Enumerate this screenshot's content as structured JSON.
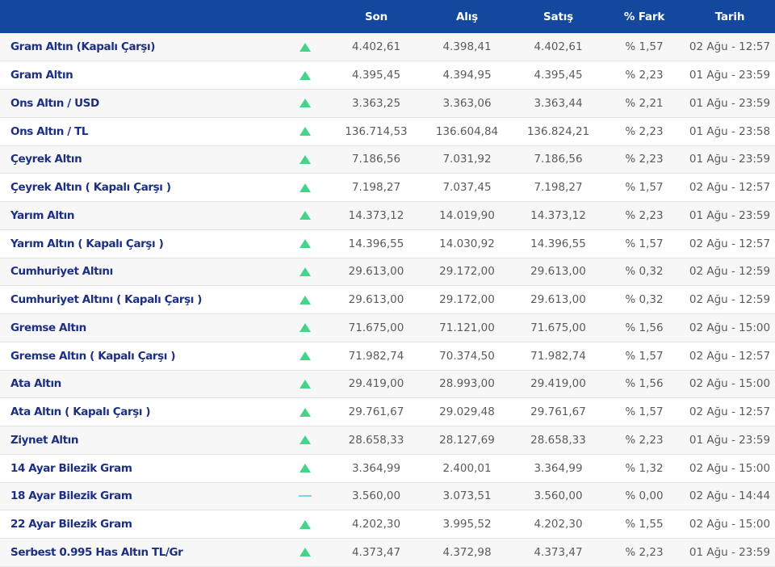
{
  "columns": [
    "",
    "",
    "Son",
    "Alış",
    "Satış",
    "% Fark",
    "Tarih"
  ],
  "colors": {
    "header_bg": "#13489e",
    "name_text": "#1c2f80",
    "up": "#49d38a",
    "flat": "#7fd3e0"
  },
  "rows": [
    {
      "name": "Gram Altın (Kapalı Çarşı)",
      "trend": "up",
      "son": "4.402,61",
      "alis": "4.398,41",
      "satis": "4.402,61",
      "fark": "% 1,57",
      "tarih": "02 Ağu - 12:57"
    },
    {
      "name": "Gram Altın",
      "trend": "up",
      "son": "4.395,45",
      "alis": "4.394,95",
      "satis": "4.395,45",
      "fark": "% 2,23",
      "tarih": "01 Ağu - 23:59"
    },
    {
      "name": "Ons Altın / USD",
      "trend": "up",
      "son": "3.363,25",
      "alis": "3.363,06",
      "satis": "3.363,44",
      "fark": "% 2,21",
      "tarih": "01 Ağu - 23:59"
    },
    {
      "name": "Ons Altın / TL",
      "trend": "up",
      "son": "136.714,53",
      "alis": "136.604,84",
      "satis": "136.824,21",
      "fark": "% 2,23",
      "tarih": "01 Ağu - 23:58"
    },
    {
      "name": "Çeyrek Altın",
      "trend": "up",
      "son": "7.186,56",
      "alis": "7.031,92",
      "satis": "7.186,56",
      "fark": "% 2,23",
      "tarih": "01 Ağu - 23:59"
    },
    {
      "name": "Çeyrek Altın ( Kapalı Çarşı )",
      "trend": "up",
      "son": "7.198,27",
      "alis": "7.037,45",
      "satis": "7.198,27",
      "fark": "% 1,57",
      "tarih": "02 Ağu - 12:57"
    },
    {
      "name": "Yarım Altın",
      "trend": "up",
      "son": "14.373,12",
      "alis": "14.019,90",
      "satis": "14.373,12",
      "fark": "% 2,23",
      "tarih": "01 Ağu - 23:59"
    },
    {
      "name": "Yarım Altın ( Kapalı Çarşı )",
      "trend": "up",
      "son": "14.396,55",
      "alis": "14.030,92",
      "satis": "14.396,55",
      "fark": "% 1,57",
      "tarih": "02 Ağu - 12:57"
    },
    {
      "name": "Cumhuriyet Altını",
      "trend": "up",
      "son": "29.613,00",
      "alis": "29.172,00",
      "satis": "29.613,00",
      "fark": "% 0,32",
      "tarih": "02 Ağu - 12:59"
    },
    {
      "name": "Cumhuriyet Altını ( Kapalı Çarşı )",
      "trend": "up",
      "son": "29.613,00",
      "alis": "29.172,00",
      "satis": "29.613,00",
      "fark": "% 0,32",
      "tarih": "02 Ağu - 12:59"
    },
    {
      "name": "Gremse Altın",
      "trend": "up",
      "son": "71.675,00",
      "alis": "71.121,00",
      "satis": "71.675,00",
      "fark": "% 1,56",
      "tarih": "02 Ağu - 15:00"
    },
    {
      "name": "Gremse Altın ( Kapalı Çarşı )",
      "trend": "up",
      "son": "71.982,74",
      "alis": "70.374,50",
      "satis": "71.982,74",
      "fark": "% 1,57",
      "tarih": "02 Ağu - 12:57"
    },
    {
      "name": "Ata Altın",
      "trend": "up",
      "son": "29.419,00",
      "alis": "28.993,00",
      "satis": "29.419,00",
      "fark": "% 1,56",
      "tarih": "02 Ağu - 15:00"
    },
    {
      "name": "Ata Altın ( Kapalı Çarşı )",
      "trend": "up",
      "son": "29.761,67",
      "alis": "29.029,48",
      "satis": "29.761,67",
      "fark": "% 1,57",
      "tarih": "02 Ağu - 12:57"
    },
    {
      "name": "Ziynet Altın",
      "trend": "up",
      "son": "28.658,33",
      "alis": "28.127,69",
      "satis": "28.658,33",
      "fark": "% 2,23",
      "tarih": "01 Ağu - 23:59"
    },
    {
      "name": "14 Ayar Bilezik Gram",
      "trend": "up",
      "son": "3.364,99",
      "alis": "2.400,01",
      "satis": "3.364,99",
      "fark": "% 1,32",
      "tarih": "02 Ağu - 15:00"
    },
    {
      "name": "18 Ayar Bilezik Gram",
      "trend": "flat",
      "son": "3.560,00",
      "alis": "3.073,51",
      "satis": "3.560,00",
      "fark": "% 0,00",
      "tarih": "02 Ağu - 14:44"
    },
    {
      "name": "22 Ayar Bilezik Gram",
      "trend": "up",
      "son": "4.202,30",
      "alis": "3.995,52",
      "satis": "4.202,30",
      "fark": "% 1,55",
      "tarih": "02 Ağu - 15:00"
    },
    {
      "name": "Serbest 0.995 Has Altın TL/Gr",
      "trend": "up",
      "son": "4.373,47",
      "alis": "4.372,98",
      "satis": "4.373,47",
      "fark": "% 2,23",
      "tarih": "01 Ağu - 23:59"
    }
  ]
}
